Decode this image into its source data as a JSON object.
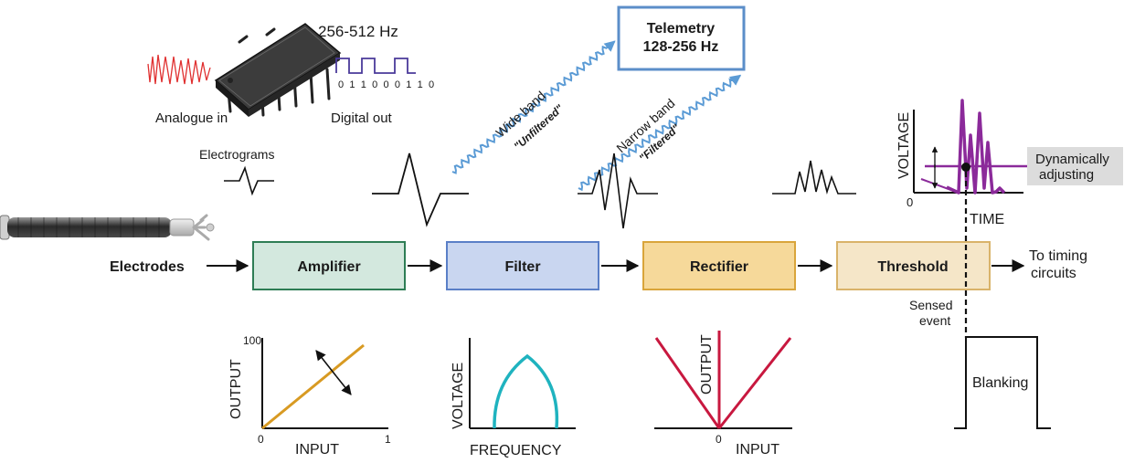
{
  "chip": {
    "freq": "256-512 Hz",
    "analogue_in": "Analogue in",
    "digital_out": "Digital out",
    "bits": "0 1 1 0 0 0 1 1 0"
  },
  "telemetry": {
    "line1": "Telemetry",
    "line2": "128-256 Hz"
  },
  "wide_band": {
    "line1": "Wide band",
    "line2": "\"Unfiltered\""
  },
  "narrow_band": {
    "line1": "Narrow band",
    "line2": "\"Filtered\""
  },
  "electrograms": "Electrograms",
  "flow": {
    "electrodes": "Electrodes",
    "amplifier": "Amplifier",
    "filter": "Filter",
    "rectifier": "Rectifier",
    "threshold": "Threshold",
    "to_timing_1": "To timing",
    "to_timing_2": "circuits"
  },
  "threshold_plot": {
    "ylabel": "VOLTAGE",
    "xlabel": "TIME",
    "origin": "0",
    "dynamic_1": "Dynamically",
    "dynamic_2": "adjusting"
  },
  "sensed": {
    "line1": "Sensed",
    "line2": "event"
  },
  "blanking": "Blanking",
  "amp_plot": {
    "ylabel": "OUTPUT",
    "xlabel": "INPUT",
    "ymax": "100",
    "origin": "0",
    "xmax": "1"
  },
  "filter_plot": {
    "ylabel": "VOLTAGE",
    "xlabel": "FREQUENCY"
  },
  "rect_plot": {
    "ylabel": "OUTPUT",
    "xlabel": "INPUT",
    "origin": "0"
  },
  "colors": {
    "amplifier_fill": "#d3e8de",
    "amplifier_stroke": "#2e7d55",
    "filter_fill": "#c9d6f0",
    "filter_stroke": "#5a7fc7",
    "rectifier_fill": "#f6d99a",
    "rectifier_stroke": "#d9a53b",
    "threshold_fill": "#f5e6c8",
    "threshold_stroke": "#d9b36a",
    "telemetry_stroke": "#5b8ec9",
    "wave_blue": "#5b9bd5",
    "signal_purple": "#8b2a9a",
    "amp_line": "#d89a22",
    "filter_curve": "#1fb3bf",
    "rect_lines": "#c8183f",
    "analog_red": "#e03030",
    "digital_purple": "#4a3a9a"
  },
  "icons": [
    "lead-icon",
    "chip-icon",
    "arrow-icon"
  ]
}
